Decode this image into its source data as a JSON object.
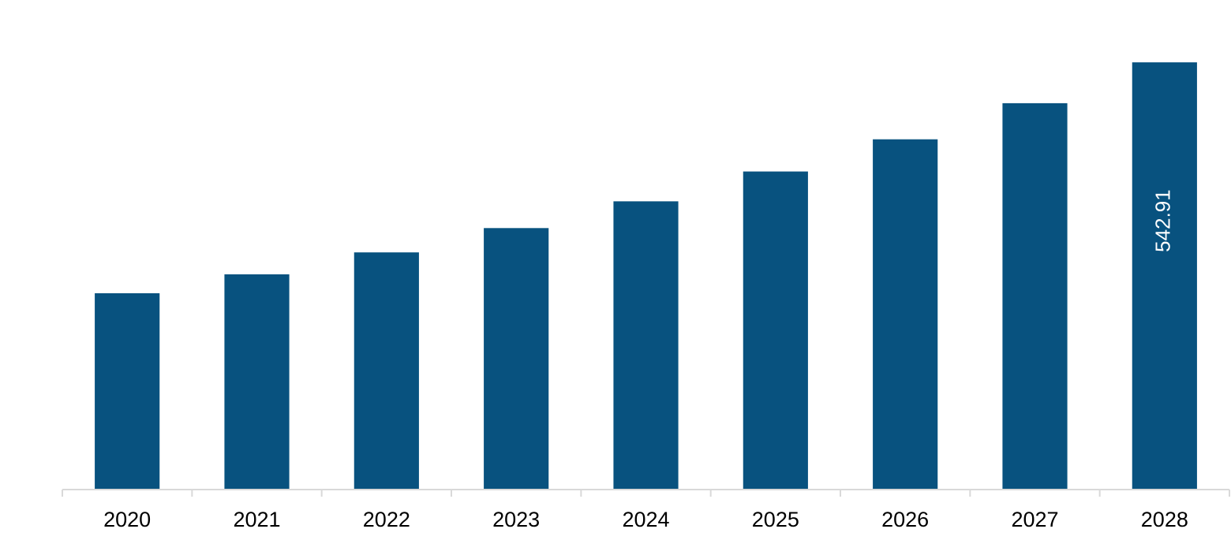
{
  "chart_data": {
    "type": "bar",
    "categories": [
      "2020",
      "2021",
      "2022",
      "2023",
      "2024",
      "2025",
      "2026",
      "2027",
      "2028"
    ],
    "values": [
      249.5,
      273.5,
      301.4,
      332.3,
      366.3,
      404.2,
      445.1,
      491.0,
      542.91
    ],
    "value_labels": [
      null,
      null,
      null,
      null,
      null,
      null,
      null,
      null,
      "542.91"
    ],
    "color": "#08527f",
    "ylim": [
      0,
      545
    ]
  }
}
